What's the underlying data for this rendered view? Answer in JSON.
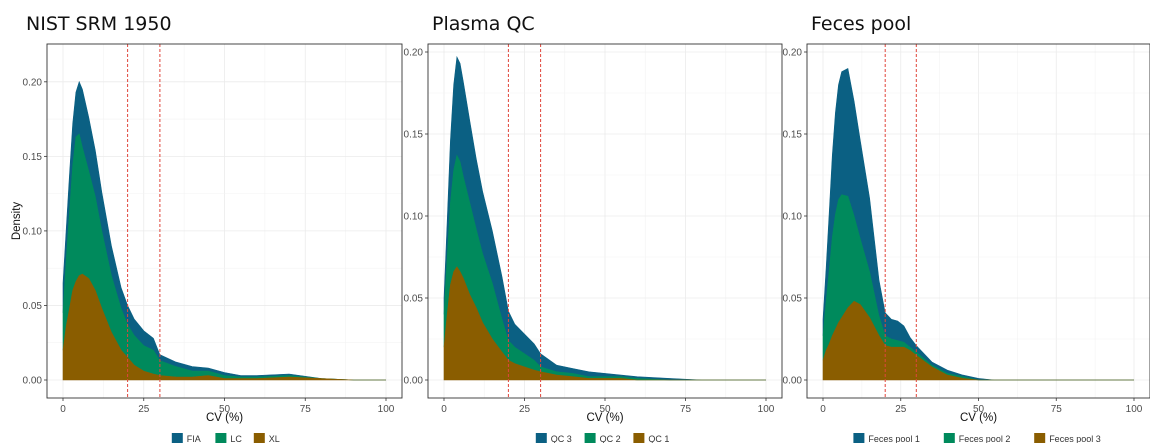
{
  "chart_data": [
    {
      "type": "area",
      "title": "NIST SRM 1950",
      "xlabel": "CV (%)",
      "ylabel": "Density",
      "xlim": [
        0,
        100
      ],
      "ylim": [
        0,
        0.22
      ],
      "x_ticks": [
        0,
        25,
        50,
        75,
        100
      ],
      "y_ticks": [
        0.0,
        0.05,
        0.1,
        0.15,
        0.2
      ],
      "grid": true,
      "legend_position": "bottom",
      "vlines": [
        20,
        30
      ],
      "vline_color": "#e0453a",
      "x": [
        0,
        1,
        2,
        3,
        4,
        5,
        6,
        8,
        10,
        12,
        15,
        18,
        20,
        22,
        25,
        28,
        30,
        35,
        40,
        45,
        50,
        55,
        60,
        70,
        80,
        90,
        100
      ],
      "stacked": true,
      "series": [
        {
          "name": "FIA",
          "color": "#0b6083",
          "values": [
            0.02,
            0.02,
            0.025,
            0.028,
            0.03,
            0.035,
            0.039,
            0.036,
            0.031,
            0.026,
            0.02,
            0.014,
            0.013,
            0.011,
            0.01,
            0.008,
            0.004,
            0.003,
            0.003,
            0.002,
            0.002,
            0.001,
            0.001,
            0.001,
            0.0,
            0.0,
            0.0
          ]
        },
        {
          "name": "LC",
          "color": "#008a5c",
          "values": [
            0.025,
            0.045,
            0.065,
            0.084,
            0.097,
            0.095,
            0.085,
            0.072,
            0.063,
            0.052,
            0.038,
            0.028,
            0.022,
            0.02,
            0.017,
            0.016,
            0.01,
            0.007,
            0.004,
            0.003,
            0.002,
            0.001,
            0.001,
            0.001,
            0.0,
            0.0,
            0.0
          ]
        },
        {
          "name": "XL",
          "color": "#8a5d00",
          "values": [
            0.02,
            0.036,
            0.048,
            0.06,
            0.066,
            0.07,
            0.071,
            0.068,
            0.06,
            0.048,
            0.032,
            0.02,
            0.015,
            0.01,
            0.006,
            0.004,
            0.003,
            0.002,
            0.002,
            0.003,
            0.001,
            0.001,
            0.001,
            0.002,
            0.001,
            0.0,
            0.0
          ]
        }
      ]
    },
    {
      "type": "area",
      "title": "Plasma QC",
      "xlabel": "CV (%)",
      "ylabel": "",
      "xlim": [
        0,
        100
      ],
      "ylim": [
        0,
        0.2
      ],
      "x_ticks": [
        0,
        25,
        50,
        75,
        100
      ],
      "y_ticks": [
        0.0,
        0.05,
        0.1,
        0.15,
        0.2
      ],
      "grid": true,
      "legend_position": "bottom",
      "vlines": [
        20,
        30
      ],
      "vline_color": "#e0453a",
      "x": [
        0,
        1,
        2,
        3,
        4,
        5,
        6,
        8,
        10,
        12,
        15,
        18,
        20,
        22,
        25,
        28,
        30,
        35,
        40,
        45,
        50,
        55,
        60,
        70,
        80,
        90,
        100
      ],
      "stacked": true,
      "series": [
        {
          "name": "QC 3",
          "color": "#0b6083",
          "values": [
            0.01,
            0.022,
            0.038,
            0.052,
            0.06,
            0.06,
            0.058,
            0.05,
            0.043,
            0.038,
            0.032,
            0.026,
            0.018,
            0.014,
            0.012,
            0.01,
            0.008,
            0.004,
            0.003,
            0.003,
            0.002,
            0.001,
            0.001,
            0.001,
            0.0,
            0.0,
            0.0
          ]
        },
        {
          "name": "QC 2",
          "color": "#008a5c",
          "values": [
            0.02,
            0.035,
            0.05,
            0.062,
            0.068,
            0.067,
            0.062,
            0.056,
            0.048,
            0.042,
            0.034,
            0.02,
            0.012,
            0.01,
            0.008,
            0.006,
            0.003,
            0.002,
            0.002,
            0.001,
            0.001,
            0.001,
            0.001,
            0.0,
            0.0,
            0.0,
            0.0
          ]
        },
        {
          "name": "QC 1",
          "color": "#8a5d00",
          "values": [
            0.02,
            0.04,
            0.058,
            0.066,
            0.069,
            0.066,
            0.062,
            0.052,
            0.044,
            0.035,
            0.025,
            0.017,
            0.012,
            0.01,
            0.008,
            0.006,
            0.005,
            0.003,
            0.002,
            0.001,
            0.001,
            0.001,
            0.0,
            0.0,
            0.0,
            0.0,
            0.0
          ]
        }
      ]
    },
    {
      "type": "area",
      "title": "Feces pool",
      "xlabel": "CV (%)",
      "ylabel": "",
      "xlim": [
        0,
        100
      ],
      "ylim": [
        0,
        0.2
      ],
      "x_ticks": [
        0,
        25,
        50,
        75,
        100
      ],
      "y_ticks": [
        0.0,
        0.05,
        0.1,
        0.15,
        0.2
      ],
      "grid": true,
      "legend_position": "bottom",
      "vlines": [
        20,
        30
      ],
      "vline_color": "#e0453a",
      "x": [
        0,
        1,
        2,
        3,
        4,
        5,
        6,
        8,
        10,
        12,
        15,
        18,
        20,
        22,
        24,
        26,
        28,
        30,
        35,
        40,
        45,
        50,
        55,
        60,
        70,
        80,
        90,
        100
      ],
      "stacked": true,
      "series": [
        {
          "name": "Feces pool 1",
          "color": "#0b6083",
          "values": [
            0.01,
            0.02,
            0.035,
            0.05,
            0.062,
            0.07,
            0.075,
            0.078,
            0.07,
            0.06,
            0.045,
            0.022,
            0.014,
            0.012,
            0.012,
            0.01,
            0.006,
            0.004,
            0.002,
            0.002,
            0.001,
            0.001,
            0.0,
            0.0,
            0.0,
            0.0,
            0.0,
            0.0
          ]
        },
        {
          "name": "Feces pool 2",
          "color": "#008a5c",
          "values": [
            0.015,
            0.03,
            0.045,
            0.06,
            0.07,
            0.075,
            0.075,
            0.068,
            0.052,
            0.04,
            0.028,
            0.012,
            0.006,
            0.005,
            0.004,
            0.003,
            0.002,
            0.002,
            0.001,
            0.001,
            0.001,
            0.0,
            0.0,
            0.0,
            0.0,
            0.0,
            0.0,
            0.0
          ]
        },
        {
          "name": "Feces pool 3",
          "color": "#8a5d00",
          "values": [
            0.012,
            0.018,
            0.022,
            0.027,
            0.031,
            0.035,
            0.038,
            0.044,
            0.048,
            0.046,
            0.038,
            0.027,
            0.021,
            0.02,
            0.02,
            0.02,
            0.018,
            0.015,
            0.008,
            0.003,
            0.001,
            0.0,
            0.0,
            0.0,
            0.0,
            0.0,
            0.0,
            0.0
          ]
        }
      ]
    }
  ]
}
